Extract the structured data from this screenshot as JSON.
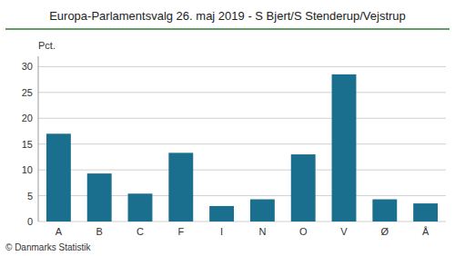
{
  "chart_data": {
    "type": "bar",
    "title": "Europa-Parlamentsvalg 26. maj 2019 - S Bjert/S Stenderup/Vejstrup",
    "categories": [
      "A",
      "B",
      "C",
      "F",
      "I",
      "N",
      "O",
      "V",
      "Ø",
      "Å"
    ],
    "values": [
      17.0,
      9.3,
      5.4,
      13.3,
      3.0,
      4.3,
      13.0,
      28.5,
      4.3,
      3.5
    ],
    "color": "#1a6e8e",
    "ylabel": "Pct.",
    "ylim": [
      0,
      32
    ],
    "yticks": [
      0,
      5,
      10,
      15,
      20,
      25,
      30
    ],
    "grid": true,
    "annotations": [
      "© Danmarks Statistik"
    ]
  }
}
